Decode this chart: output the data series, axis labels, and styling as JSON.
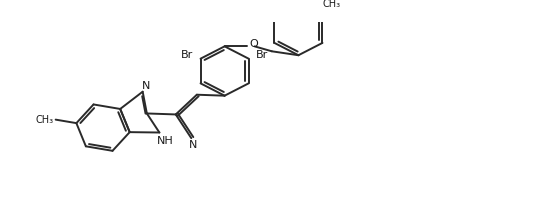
{
  "background": "#ffffff",
  "line_color": "#2a2a2a",
  "line_width": 1.4,
  "text_color": "#1a1a1a",
  "label_fontsize": 7.5,
  "figsize": [
    5.58,
    2.16
  ],
  "dpi": 100,
  "xlim": [
    0,
    10
  ],
  "ylim": [
    0,
    3.9
  ]
}
